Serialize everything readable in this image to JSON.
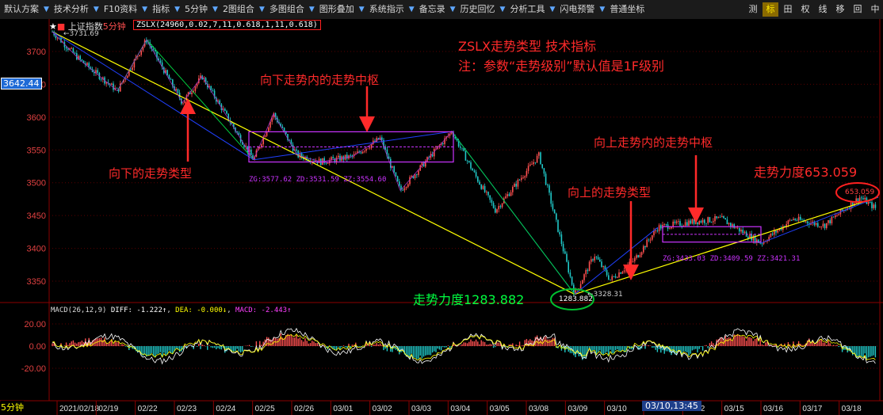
{
  "toolbar": {
    "items": [
      "默认方案",
      "技术分析",
      "F10资料",
      "指标",
      "5分钟",
      "2图组合",
      "多图组合",
      "图形叠加",
      "系统指示",
      "备忘录",
      "历史回忆",
      "分析工具",
      "闪电预警",
      "普通坐标"
    ],
    "right_buttons": [
      "测",
      "标",
      "田",
      "权",
      "线",
      "移",
      "回",
      "中"
    ],
    "active_right": "标"
  },
  "main_header": {
    "stock": "上证指数",
    "period": "5分钟",
    "indicator_params": "ZSLX(24960,0.02,7,11,0.618,1,11,0.618)",
    "high_label": "3731.69",
    "price_badge": "3642.44"
  },
  "annotations": {
    "title": "ZSLX走势类型 技术指标",
    "note": "注：参数“走势级别”默认值是1F级别",
    "down_center": "向下走势内的走势中枢",
    "down_type": "向下的走势类型",
    "up_center": "向上走势内的走势中枢",
    "up_type": "向上的走势类型",
    "force_low": "走势力度1283.882",
    "force_high": "走势力度653.059",
    "force_low_value": "1283.882",
    "force_high_value": "653.059",
    "low_label": "3328.31",
    "center1_text": "ZG:3577.62 ZD:3531.59 ZZ:3554.60",
    "center2_text": "ZG:3433.03 ZD:3409.59 ZZ:3421.31"
  },
  "macd": {
    "label": "MACD(26,12,9)",
    "diff": "DIFF: -1.222↑",
    "dea": "DEA: -0.000↓",
    "macd": "MACD: -2.443↑",
    "y_ticks": [
      "20.00",
      "0.00",
      "-20.00"
    ]
  },
  "price_axis": {
    "ticks": [
      "3700",
      "3650",
      "3600",
      "3550",
      "3500",
      "3450",
      "3400",
      "3350"
    ]
  },
  "date_axis": {
    "mode_label": "5分钟",
    "dates": [
      "2021/02/18",
      "02/19",
      "02/22",
      "02/23",
      "02/24",
      "02/25",
      "02/26",
      "03/01",
      "03/02",
      "03/03",
      "03/04",
      "03/05",
      "03/08",
      "03/09",
      "03/10",
      "03/11",
      "03/12",
      "03/15",
      "03/16",
      "03/17",
      "03/18"
    ],
    "cursor_label": "03/10,13:45"
  },
  "colors": {
    "up": "#ff5050",
    "down": "#20c8c8",
    "diff": "#ffffff",
    "dea": "#ffff00",
    "trend": "#ffff00",
    "stroke_down": "#2040ff",
    "stroke_up": "#00d040",
    "center": "#cc33ff",
    "annotation": "#ff2a2a",
    "green_text": "#00ff40"
  }
}
